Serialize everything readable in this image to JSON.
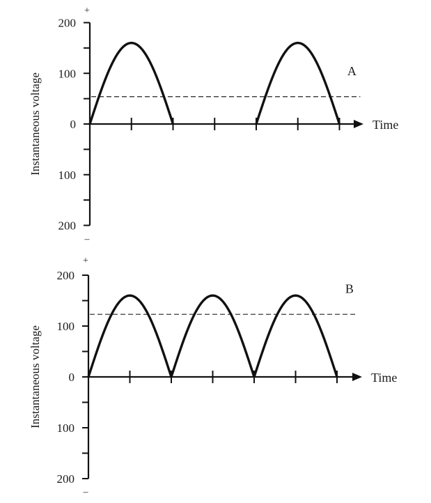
{
  "chart_data": [
    {
      "type": "line",
      "panel_label": "A",
      "ylabel": "Instantaneous voltage",
      "xlabel": "Time",
      "y_positive_sign": "+",
      "y_negative_sign": "–",
      "yticks": [
        {
          "value": 200,
          "label": "200"
        },
        {
          "value": 100,
          "label": "100"
        },
        {
          "value": 0,
          "label": "0"
        },
        {
          "value": -100,
          "label": "100"
        },
        {
          "value": -200,
          "label": "200"
        }
      ],
      "ylim": [
        -200,
        200
      ],
      "xlim": [
        0,
        6.5
      ],
      "x_ticks": [
        1,
        2,
        3,
        4,
        5,
        6
      ],
      "peak": 160,
      "half_cycles": [
        {
          "start": 0,
          "end": 2
        },
        {
          "start": 4,
          "end": 6
        }
      ],
      "average_line": 54,
      "grid": false
    },
    {
      "type": "line",
      "panel_label": "B",
      "ylabel": "Instantaneous voltage",
      "xlabel": "Time",
      "y_positive_sign": "+",
      "y_negative_sign": "–",
      "yticks": [
        {
          "value": 200,
          "label": "200"
        },
        {
          "value": 100,
          "label": "100"
        },
        {
          "value": 0,
          "label": "0"
        },
        {
          "value": -100,
          "label": "100"
        },
        {
          "value": -200,
          "label": "200"
        }
      ],
      "ylim": [
        -200,
        200
      ],
      "xlim": [
        0,
        6.5
      ],
      "x_ticks": [
        1,
        2,
        3,
        4,
        5,
        6
      ],
      "peak": 160,
      "half_cycles": [
        {
          "start": 0,
          "end": 2
        },
        {
          "start": 2,
          "end": 4
        },
        {
          "start": 4,
          "end": 6
        }
      ],
      "average_line": 123,
      "grid": false
    }
  ]
}
